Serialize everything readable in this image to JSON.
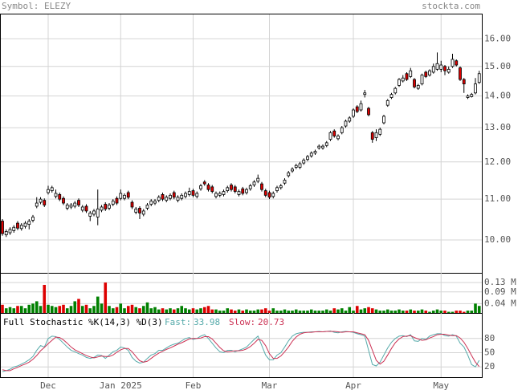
{
  "chart_data": [
    {
      "type": "candlestick",
      "title": "Symbol: ELEZY",
      "source": "stockta.com",
      "log_scale": true,
      "grid": true,
      "up_color": "#ffffff",
      "down_color": "#dd0000",
      "categories": [
        null,
        null,
        null,
        null,
        null,
        null,
        null,
        null,
        null,
        null,
        null,
        null,
        "Dec",
        null,
        null,
        null,
        null,
        null,
        null,
        null,
        null,
        null,
        null,
        null,
        null,
        null,
        null,
        null,
        null,
        null,
        null,
        "Jan 2025",
        null,
        null,
        null,
        null,
        null,
        null,
        null,
        null,
        null,
        null,
        null,
        null,
        null,
        null,
        null,
        null,
        null,
        null,
        "Feb",
        null,
        null,
        null,
        null,
        null,
        null,
        null,
        null,
        null,
        null,
        null,
        null,
        null,
        null,
        null,
        null,
        null,
        null,
        null,
        "Mar",
        null,
        null,
        null,
        null,
        null,
        null,
        null,
        null,
        null,
        null,
        null,
        null,
        null,
        null,
        null,
        null,
        null,
        null,
        null,
        null,
        null,
        "Apr",
        null,
        null,
        null,
        null,
        null,
        null,
        null,
        null,
        null,
        null,
        null,
        null,
        null,
        null,
        null,
        null,
        null,
        null,
        null,
        null,
        null,
        null,
        "May",
        null,
        null,
        null,
        null,
        null,
        null,
        null,
        null,
        null,
        null
      ],
      "open": [
        10.45,
        10.12,
        10.17,
        10.22,
        10.4,
        10.27,
        10.32,
        10.37,
        10.47,
        10.82,
        10.92,
        10.97,
        11.17,
        11.22,
        11.07,
        11.12,
        11.02,
        10.77,
        10.8,
        10.82,
        10.97,
        10.72,
        10.82,
        10.57,
        10.62,
        10.55,
        10.72,
        10.87,
        10.77,
        10.87,
        11.02,
        11.02,
        11.02,
        11.17,
        10.92,
        10.67,
        10.77,
        10.62,
        10.77,
        10.87,
        10.9,
        10.97,
        11.12,
        10.97,
        11.02,
        11.17,
        10.97,
        11.02,
        11.07,
        11.12,
        11.22,
        11.07,
        11.27,
        11.45,
        11.37,
        11.32,
        11.07,
        11.1,
        11.12,
        11.22,
        11.37,
        11.32,
        11.12,
        11.27,
        11.17,
        11.27,
        11.37,
        11.47,
        11.4,
        11.22,
        11.17,
        11.07,
        11.22,
        11.3,
        11.42,
        11.62,
        11.75,
        11.85,
        11.85,
        11.97,
        12.07,
        12.17,
        12.25,
        12.4,
        12.4,
        12.47,
        12.65,
        12.9,
        12.67,
        12.85,
        13.05,
        13.2,
        13.35,
        13.65,
        13.55,
        14.05,
        13.6,
        12.85,
        12.7,
        12.8,
        13.15,
        13.7,
        13.95,
        14.1,
        14.35,
        14.5,
        14.75,
        14.65,
        14.55,
        14.25,
        14.4,
        14.8,
        14.7,
        14.8,
        14.9,
        14.9,
        15.0,
        14.8,
        15.0,
        15.2,
        14.95,
        14.55,
        13.95,
        13.98,
        14.1,
        14.45
      ],
      "high": [
        10.5,
        10.25,
        10.3,
        10.35,
        10.45,
        10.4,
        10.45,
        10.5,
        10.6,
        11.05,
        11.05,
        11.02,
        11.35,
        11.35,
        11.25,
        11.17,
        11.07,
        10.9,
        10.9,
        10.95,
        11.02,
        10.85,
        10.87,
        10.7,
        10.75,
        11.25,
        10.85,
        10.92,
        10.9,
        11.0,
        11.07,
        11.25,
        11.15,
        11.22,
        10.97,
        10.8,
        10.82,
        10.75,
        10.9,
        11.0,
        11.0,
        11.1,
        11.17,
        11.1,
        11.15,
        11.22,
        11.1,
        11.15,
        11.2,
        11.3,
        11.27,
        11.2,
        11.4,
        11.5,
        11.42,
        11.37,
        11.2,
        11.2,
        11.25,
        11.35,
        11.42,
        11.37,
        11.25,
        11.32,
        11.3,
        11.4,
        11.5,
        11.65,
        11.45,
        11.27,
        11.22,
        11.2,
        11.35,
        11.4,
        11.55,
        11.75,
        11.85,
        11.95,
        12.0,
        12.1,
        12.2,
        12.3,
        12.35,
        12.5,
        12.5,
        12.6,
        12.9,
        12.95,
        12.8,
        13.05,
        13.25,
        13.35,
        13.6,
        13.7,
        13.85,
        14.2,
        13.65,
        12.9,
        12.95,
        13.0,
        13.4,
        13.9,
        14.1,
        14.3,
        14.6,
        14.7,
        14.8,
        14.95,
        14.6,
        14.4,
        14.75,
        14.85,
        14.9,
        15.1,
        15.5,
        15.2,
        15.05,
        15.0,
        15.45,
        15.25,
        15.0,
        14.6,
        14.05,
        14.1,
        14.6,
        14.85
      ],
      "low": [
        10.1,
        10.07,
        10.12,
        10.17,
        10.23,
        10.22,
        10.27,
        10.25,
        10.42,
        10.77,
        10.87,
        10.8,
        11.12,
        11.17,
        11.02,
        10.95,
        10.85,
        10.72,
        10.75,
        10.77,
        10.8,
        10.67,
        10.65,
        10.45,
        10.57,
        10.35,
        10.67,
        10.7,
        10.72,
        10.82,
        10.85,
        10.97,
        10.97,
        11.0,
        10.75,
        10.62,
        10.5,
        10.57,
        10.72,
        10.82,
        10.85,
        10.92,
        10.95,
        10.92,
        10.97,
        11.0,
        10.92,
        10.97,
        11.02,
        11.07,
        11.05,
        11.02,
        11.22,
        11.35,
        11.2,
        11.15,
        11.02,
        11.05,
        11.07,
        11.17,
        11.2,
        11.15,
        11.07,
        11.1,
        11.12,
        11.22,
        11.32,
        11.42,
        11.2,
        11.05,
        11.0,
        11.02,
        11.17,
        11.25,
        11.37,
        11.57,
        11.7,
        11.8,
        11.8,
        11.92,
        12.02,
        12.12,
        12.2,
        12.35,
        12.35,
        12.42,
        12.6,
        12.7,
        12.62,
        12.8,
        13.0,
        13.15,
        13.3,
        13.45,
        13.5,
        13.95,
        13.35,
        12.55,
        12.6,
        12.75,
        13.1,
        13.65,
        13.9,
        14.05,
        14.3,
        14.45,
        14.5,
        14.6,
        14.25,
        14.2,
        14.35,
        14.6,
        14.65,
        14.75,
        14.85,
        14.8,
        14.7,
        14.75,
        14.95,
        15.0,
        14.5,
        14.1,
        13.9,
        13.95,
        14.05,
        14.4
      ],
      "close": [
        10.15,
        10.2,
        10.25,
        10.3,
        10.28,
        10.35,
        10.4,
        10.45,
        10.55,
        10.9,
        11.0,
        10.85,
        11.25,
        11.3,
        11.15,
        11.0,
        10.9,
        10.85,
        10.85,
        10.9,
        10.85,
        10.8,
        10.7,
        10.65,
        10.7,
        10.75,
        10.8,
        10.75,
        10.85,
        10.95,
        10.9,
        11.15,
        11.1,
        11.05,
        10.8,
        10.75,
        10.65,
        10.7,
        10.85,
        10.95,
        10.95,
        11.05,
        11.0,
        11.05,
        11.1,
        11.05,
        11.05,
        11.1,
        11.15,
        11.2,
        11.1,
        11.15,
        11.35,
        11.4,
        11.25,
        11.2,
        11.15,
        11.15,
        11.2,
        11.3,
        11.25,
        11.2,
        11.2,
        11.15,
        11.25,
        11.35,
        11.45,
        11.55,
        11.25,
        11.1,
        11.05,
        11.15,
        11.3,
        11.35,
        11.5,
        11.7,
        11.8,
        11.9,
        11.95,
        12.05,
        12.15,
        12.25,
        12.3,
        12.45,
        12.45,
        12.55,
        12.85,
        12.75,
        12.75,
        13.0,
        13.2,
        13.3,
        13.55,
        13.5,
        13.75,
        14.1,
        13.4,
        12.65,
        12.85,
        12.95,
        13.35,
        13.85,
        14.05,
        14.25,
        14.55,
        14.6,
        14.55,
        14.85,
        14.3,
        14.35,
        14.7,
        14.65,
        14.85,
        15.0,
        15.1,
        15.05,
        14.85,
        14.9,
        15.25,
        15.05,
        14.55,
        14.4,
        14.0,
        14.05,
        14.4,
        14.75
      ],
      "ylim": [
        9.26,
        16.97
      ],
      "yticks": [
        {
          "value": 16,
          "label": "16.00"
        },
        {
          "value": 15,
          "label": "15.00"
        },
        {
          "value": 14,
          "label": "14.00"
        },
        {
          "value": 13,
          "label": "13.00"
        },
        {
          "value": 12,
          "label": "12.00"
        },
        {
          "value": 11,
          "label": "11.00"
        },
        {
          "value": 10,
          "label": "10.00"
        }
      ]
    },
    {
      "type": "bar",
      "up_color": "#008000",
      "down_color": "#dd0000",
      "values": [
        0.035,
        0.02,
        0.025,
        0.02,
        0.03,
        0.03,
        0.02,
        0.035,
        0.04,
        0.05,
        0.03,
        0.12,
        0.035,
        0.03,
        0.025,
        0.03,
        0.035,
        0.02,
        0.03,
        0.05,
        0.06,
        0.03,
        0.035,
        0.02,
        0.03,
        0.07,
        0.04,
        0.13,
        0.03,
        0.02,
        0.025,
        0.04,
        0.02,
        0.03,
        0.035,
        0.025,
        0.02,
        0.03,
        0.045,
        0.02,
        0.025,
        0.015,
        0.02,
        0.015,
        0.02,
        0.015,
        0.02,
        0.03,
        0.02,
        0.015,
        0.02,
        0.015,
        0.02,
        0.025,
        0.03,
        0.015,
        0.015,
        0.01,
        0.01,
        0.02,
        0.015,
        0.01,
        0.015,
        0.01,
        0.015,
        0.01,
        0.01,
        0.015,
        0.015,
        0.02,
        0.01,
        0.02,
        0.01,
        0.01,
        0.015,
        0.01,
        0.01,
        0.015,
        0.01,
        0.01,
        0.01,
        0.015,
        0.01,
        0.01,
        0.01,
        0.015,
        0.01,
        0.02,
        0.015,
        0.02,
        0.01,
        0.025,
        0.01,
        0.03,
        0.015,
        0.02,
        0.025,
        0.02,
        0.015,
        0.01,
        0.01,
        0.015,
        0.01,
        0.01,
        0.015,
        0.01,
        0.01,
        0.015,
        0.01,
        0.01,
        0.015,
        0.01,
        0.005,
        0.01,
        0.015,
        0.01,
        0.01,
        0.005,
        0.005,
        0.01,
        0.01,
        0.005,
        0.01,
        0.01,
        0.04,
        0.03
      ],
      "ylim": [
        0,
        0.168
      ],
      "yticks": [
        {
          "value": 0.13,
          "label": "0.13 M"
        },
        {
          "value": 0.09,
          "label": "0.09 M"
        },
        {
          "value": 0.04,
          "label": "0.04 M"
        }
      ]
    },
    {
      "type": "line",
      "title": "Full Stochastic %K(14,3) %D(3)",
      "series": [
        {
          "name": "Fast:",
          "color": "#55aaaa",
          "values": [
            10,
            12,
            15,
            20,
            22,
            26,
            30,
            35,
            42,
            55,
            65,
            62,
            80,
            85,
            84,
            78,
            70,
            62,
            55,
            52,
            48,
            45,
            40,
            38,
            40,
            45,
            44,
            38,
            45,
            52,
            55,
            62,
            60,
            55,
            40,
            32,
            28,
            30,
            38,
            45,
            48,
            55,
            55,
            60,
            65,
            68,
            70,
            75,
            80,
            82,
            78,
            80,
            85,
            88,
            80,
            70,
            60,
            52,
            50,
            55,
            55,
            52,
            55,
            58,
            62,
            70,
            78,
            85,
            65,
            45,
            35,
            35,
            45,
            50,
            62,
            75,
            85,
            90,
            92,
            93,
            93,
            94,
            94,
            95,
            94,
            95,
            96,
            93,
            92,
            94,
            95,
            94,
            93,
            90,
            88,
            85,
            55,
            25,
            22,
            30,
            45,
            60,
            72,
            80,
            85,
            86,
            84,
            88,
            75,
            74,
            80,
            78,
            85,
            88,
            90,
            90,
            86,
            85,
            88,
            85,
            70,
            62,
            45,
            25,
            20,
            33.98
          ]
        },
        {
          "name": "Slow:",
          "color": "#cc3355",
          "values": [
            14,
            12,
            12,
            16,
            19,
            23,
            26,
            30,
            36,
            44,
            54,
            61,
            69,
            76,
            83,
            82,
            77,
            70,
            62,
            56,
            52,
            48,
            44,
            41,
            39,
            41,
            43,
            42,
            42,
            45,
            51,
            56,
            59,
            59,
            52,
            42,
            33,
            30,
            32,
            38,
            44,
            49,
            53,
            57,
            60,
            64,
            68,
            71,
            75,
            79,
            80,
            80,
            81,
            84,
            84,
            79,
            70,
            61,
            54,
            52,
            53,
            54,
            54,
            55,
            58,
            63,
            70,
            78,
            76,
            65,
            48,
            38,
            38,
            43,
            52,
            62,
            74,
            83,
            89,
            92,
            93,
            93,
            94,
            94,
            94,
            95,
            95,
            95,
            94,
            93,
            94,
            94,
            94,
            92,
            90,
            88,
            76,
            55,
            34,
            26,
            32,
            45,
            59,
            71,
            79,
            84,
            85,
            86,
            82,
            79,
            76,
            77,
            81,
            84,
            88,
            89,
            89,
            87,
            86,
            86,
            81,
            72,
            59,
            44,
            30,
            20.73
          ]
        }
      ],
      "ylim": [
        0,
        100
      ],
      "yticks": [
        80,
        50,
        20
      ]
    }
  ]
}
